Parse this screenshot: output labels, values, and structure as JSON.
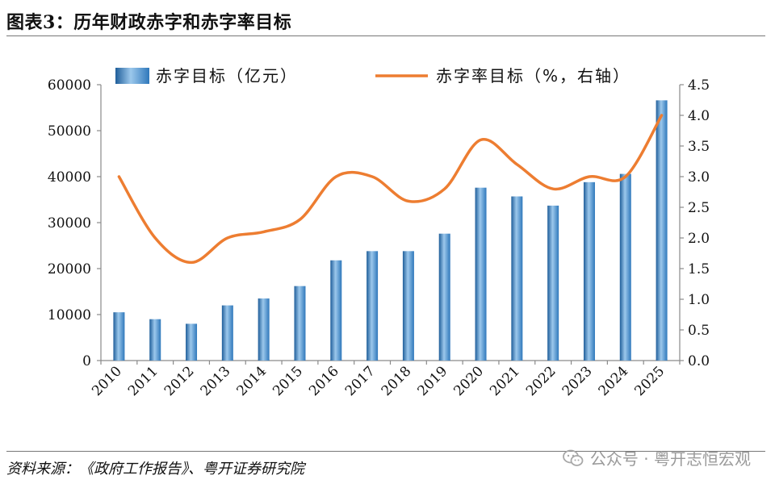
{
  "header": {
    "title": "图表3：历年财政赤字和赤字率目标"
  },
  "footer": {
    "source": "资料来源：《政府工作报告》、粤开证券研究院",
    "watermark": "公众号 · 粤开志恒宏观",
    "watermark_icon": "wechat-icon"
  },
  "colors": {
    "bar": "#3a85c6",
    "bar_dark": "#1f5e9a",
    "bar_light": "#9cc8ec",
    "line": "#ed7d31",
    "axis": "#8a8a8a"
  },
  "chart_data": {
    "type": "bar",
    "categories": [
      "2010",
      "2011",
      "2012",
      "2013",
      "2014",
      "2015",
      "2016",
      "2017",
      "2018",
      "2019",
      "2020",
      "2021",
      "2022",
      "2023",
      "2024",
      "2025"
    ],
    "series": [
      {
        "name": "赤字目标（亿元）",
        "type": "bar",
        "axis": "left",
        "values": [
          10500,
          9000,
          8000,
          12000,
          13500,
          16200,
          21800,
          23800,
          23800,
          27600,
          37600,
          35700,
          33700,
          38800,
          40600,
          56600
        ]
      },
      {
        "name": "赤字率目标（%，右轴）",
        "type": "line",
        "axis": "right",
        "values": [
          3.0,
          2.0,
          1.6,
          2.0,
          2.1,
          2.3,
          3.0,
          3.0,
          2.6,
          2.8,
          3.6,
          3.2,
          2.8,
          3.0,
          3.0,
          4.0
        ]
      }
    ],
    "y_left": {
      "min": 0,
      "max": 60000,
      "ticks": [
        "0",
        "10000",
        "20000",
        "30000",
        "40000",
        "50000",
        "60000"
      ]
    },
    "y_right": {
      "min": 0,
      "max": 4.5,
      "ticks": [
        "0.0",
        "0.5",
        "1.0",
        "1.5",
        "2.0",
        "2.5",
        "3.0",
        "3.5",
        "4.0",
        "4.5"
      ]
    },
    "legend_position": "top",
    "grid": false
  }
}
